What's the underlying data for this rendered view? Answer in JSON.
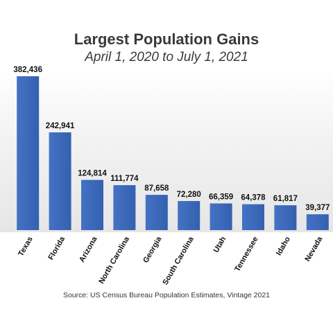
{
  "chart_data": {
    "type": "bar",
    "title": "Largest Population Gains",
    "subtitle": "April 1, 2020 to July 1, 2021",
    "categories": [
      "Texas",
      "Florida",
      "Arizona",
      "North Carolina",
      "Georgia",
      "South Carolina",
      "Utah",
      "Tennessee",
      "Idaho",
      "Nevada"
    ],
    "values": [
      382436,
      242941,
      124814,
      111774,
      87658,
      72280,
      66359,
      64378,
      61817,
      39377
    ],
    "value_labels": [
      "382,436",
      "242,941",
      "124,814",
      "111,774",
      "87,658",
      "72,280",
      "66,359",
      "64,378",
      "61,817",
      "39,377"
    ],
    "ylim": [
      0,
      382436
    ],
    "grid": false,
    "legend": "none",
    "bar_color": "#4472c4",
    "bar_color_dark": "#3560b0"
  },
  "source": "Source: US Census Bureau Population Estimates, Vintage 2021"
}
